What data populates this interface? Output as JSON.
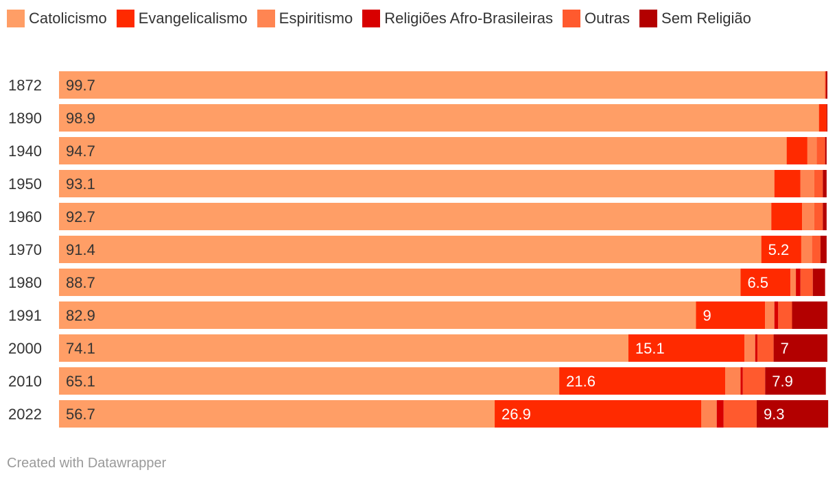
{
  "chart_data": {
    "type": "bar",
    "orientation": "horizontal",
    "stacked": true,
    "categories": [
      "1872",
      "1890",
      "1940",
      "1950",
      "1960",
      "1970",
      "1980",
      "1991",
      "2000",
      "2010",
      "2022"
    ],
    "xlim": [
      0,
      100
    ],
    "legend_position": "top",
    "series": [
      {
        "name": "Catolicismo",
        "color": "#ff9e66",
        "values": [
          99.7,
          98.9,
          94.7,
          93.1,
          92.7,
          91.4,
          88.7,
          82.9,
          74.1,
          65.1,
          56.7
        ],
        "labels": [
          "99.7",
          "98.9",
          "94.7",
          "93.1",
          "92.7",
          "91.4",
          "88.7",
          "82.9",
          "74.1",
          "65.1",
          "56.7"
        ]
      },
      {
        "name": "Evangelicalismo",
        "color": "#ff2a00",
        "values": [
          0.1,
          1.0,
          2.7,
          3.4,
          4.0,
          5.2,
          6.5,
          9,
          15.1,
          21.6,
          26.9
        ],
        "labels": [
          "",
          "",
          "",
          "",
          "",
          "5.2",
          "6.5",
          "9",
          "15.1",
          "21.6",
          "26.9"
        ]
      },
      {
        "name": "Espiritismo",
        "color": "#ff8552",
        "values": [
          0,
          0,
          1.2,
          1.8,
          1.6,
          1.4,
          0.7,
          1.2,
          1.4,
          2.0,
          2.0
        ],
        "labels": [
          "",
          "",
          "",
          "",
          "",
          "",
          "",
          "",
          "",
          "",
          ""
        ]
      },
      {
        "name": "Religiões Afro-Brasileiras",
        "color": "#d80000",
        "values": [
          0,
          0,
          0,
          0,
          0,
          0,
          0.6,
          0.5,
          0.3,
          0.3,
          0.9
        ],
        "labels": [
          "",
          "",
          "",
          "",
          "",
          "",
          "",
          "",
          "",
          "",
          ""
        ]
      },
      {
        "name": "Outras",
        "color": "#ff5a2e",
        "values": [
          0,
          0,
          1.1,
          1.1,
          1.1,
          1.1,
          1.6,
          1.8,
          2.1,
          2.9,
          4.3
        ],
        "labels": [
          "",
          "",
          "",
          "",
          "",
          "",
          "",
          "",
          "",
          "",
          ""
        ]
      },
      {
        "name": "Sem Religião",
        "color": "#b30000",
        "values": [
          0.2,
          0.1,
          0.2,
          0.5,
          0.5,
          0.8,
          1.6,
          4.6,
          7,
          7.9,
          9.3
        ],
        "labels": [
          "",
          "",
          "",
          "",
          "",
          "",
          "",
          "",
          "7",
          "7.9",
          "9.3"
        ]
      }
    ]
  },
  "footer": "Created with Datawrapper"
}
